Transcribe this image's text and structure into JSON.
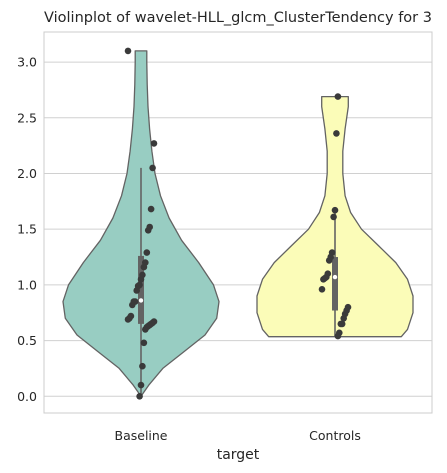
{
  "chart_data": {
    "type": "violin",
    "title": "Violinplot of wavelet-HLL_glcm_ClusterTendency for 3",
    "xlabel": "target",
    "ylabel": "",
    "ylim": [
      -0.15,
      3.27
    ],
    "yticks": [
      "0.0",
      "0.5",
      "1.0",
      "1.5",
      "2.0",
      "2.5",
      "3.0"
    ],
    "grid": "horizontal",
    "categories": [
      "Baseline",
      "Controls"
    ],
    "colors": {
      "Baseline": "#98cdc2",
      "Controls": "#fbfcb8",
      "outline": "#636363",
      "points": "#3a3a3a",
      "grid": "#d0d0d0"
    },
    "series": [
      {
        "category": "Baseline",
        "points": [
          3.1,
          2.27,
          2.05,
          1.68,
          1.52,
          1.49,
          1.29,
          1.2,
          1.16,
          1.09,
          1.05,
          1.0,
          0.99,
          0.95,
          0.85,
          0.85,
          0.82,
          0.72,
          0.7,
          0.69,
          0.67,
          0.66,
          0.65,
          0.64,
          0.63,
          0.62,
          0.6,
          0.48,
          0.27,
          0.1,
          0.0
        ],
        "quartiles": [
          0.65,
          0.86,
          1.26
        ],
        "whiskers": [
          0.0,
          2.05
        ],
        "density": [
          [
            0.0,
            0.0
          ],
          [
            0.1,
            0.1
          ],
          [
            0.25,
            0.28
          ],
          [
            0.4,
            0.55
          ],
          [
            0.55,
            0.82
          ],
          [
            0.7,
            0.97
          ],
          [
            0.85,
            1.0
          ],
          [
            1.0,
            0.93
          ],
          [
            1.2,
            0.74
          ],
          [
            1.4,
            0.52
          ],
          [
            1.6,
            0.36
          ],
          [
            1.8,
            0.25
          ],
          [
            2.0,
            0.18
          ],
          [
            2.2,
            0.14
          ],
          [
            2.4,
            0.11
          ],
          [
            2.6,
            0.09
          ],
          [
            2.8,
            0.08
          ],
          [
            3.0,
            0.075
          ],
          [
            3.1,
            0.075
          ]
        ]
      },
      {
        "category": "Controls",
        "points": [
          2.69,
          2.36,
          1.67,
          1.61,
          1.29,
          1.25,
          1.22,
          1.1,
          1.07,
          1.06,
          1.05,
          0.96,
          0.8,
          0.77,
          0.74,
          0.7,
          0.65,
          0.65,
          0.57,
          0.54
        ],
        "quartiles": [
          0.77,
          1.07,
          1.25
        ],
        "whiskers": [
          0.54,
          1.67
        ],
        "density": [
          [
            0.535,
            0.85
          ],
          [
            0.6,
            0.93
          ],
          [
            0.75,
            1.0
          ],
          [
            0.9,
            1.0
          ],
          [
            1.05,
            0.93
          ],
          [
            1.2,
            0.78
          ],
          [
            1.35,
            0.56
          ],
          [
            1.5,
            0.34
          ],
          [
            1.65,
            0.2
          ],
          [
            1.8,
            0.13
          ],
          [
            2.0,
            0.1
          ],
          [
            2.2,
            0.1
          ],
          [
            2.4,
            0.13
          ],
          [
            2.6,
            0.17
          ],
          [
            2.69,
            0.17
          ]
        ]
      }
    ]
  }
}
